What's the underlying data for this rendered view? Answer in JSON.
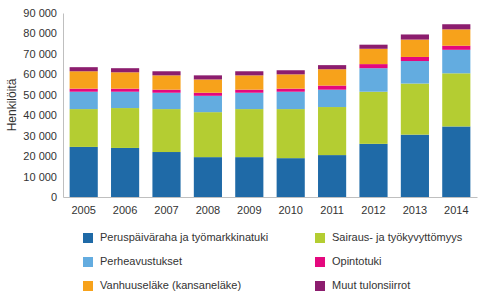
{
  "chart_data": {
    "type": "bar",
    "stacked": true,
    "grid": false,
    "legend": "bottom",
    "y_label": "Henkilöitä",
    "categories": [
      "2005",
      "2006",
      "2007",
      "2008",
      "2009",
      "2010",
      "2011",
      "2012",
      "2013",
      "2014"
    ],
    "series": [
      {
        "name": "Peruspäiväraha ja työmarkkinatuki",
        "color": "#1f6aa7",
        "values": [
          24500,
          24000,
          22000,
          19500,
          19500,
          19000,
          20500,
          26000,
          30500,
          34500
        ]
      },
      {
        "name": "Sairaus- ja työkyvyttömyys",
        "color": "#b4cd32",
        "values": [
          18500,
          19500,
          21000,
          22000,
          23500,
          24000,
          23500,
          25500,
          25000,
          26000
        ]
      },
      {
        "name": "Perheavustukset",
        "color": "#63ace0",
        "values": [
          8500,
          8000,
          8000,
          8000,
          8000,
          8500,
          8500,
          11500,
          11000,
          11500
        ]
      },
      {
        "name": "Opintotuki",
        "color": "#e4087e",
        "values": [
          1500,
          1500,
          1500,
          1500,
          1500,
          1500,
          2000,
          2000,
          2000,
          2000
        ]
      },
      {
        "name": "Vanhuuseläke (kansaneläke)",
        "color": "#f7a21b",
        "values": [
          8500,
          8000,
          7000,
          6500,
          7000,
          7000,
          8000,
          7500,
          8500,
          8000
        ]
      },
      {
        "name": "Muut tulonsiirrot",
        "color": "#8c1d6e",
        "values": [
          2000,
          2000,
          2000,
          2000,
          2000,
          2000,
          2000,
          2000,
          2500,
          2500
        ]
      }
    ],
    "ylim": [
      0,
      90000
    ],
    "yticks": [
      0,
      {
        "value": 10000,
        "label": "10 000"
      },
      {
        "value": 20000,
        "label": "20 000"
      },
      {
        "value": 30000,
        "label": "30 000"
      },
      {
        "value": 40000,
        "label": "40 000"
      },
      {
        "value": 50000,
        "label": "50 000"
      },
      {
        "value": 60000,
        "label": "60 000"
      },
      {
        "value": 70000,
        "label": "70 000"
      },
      {
        "value": 80000,
        "label": "80 000"
      },
      {
        "value": 90000,
        "label": "90 000"
      }
    ]
  }
}
